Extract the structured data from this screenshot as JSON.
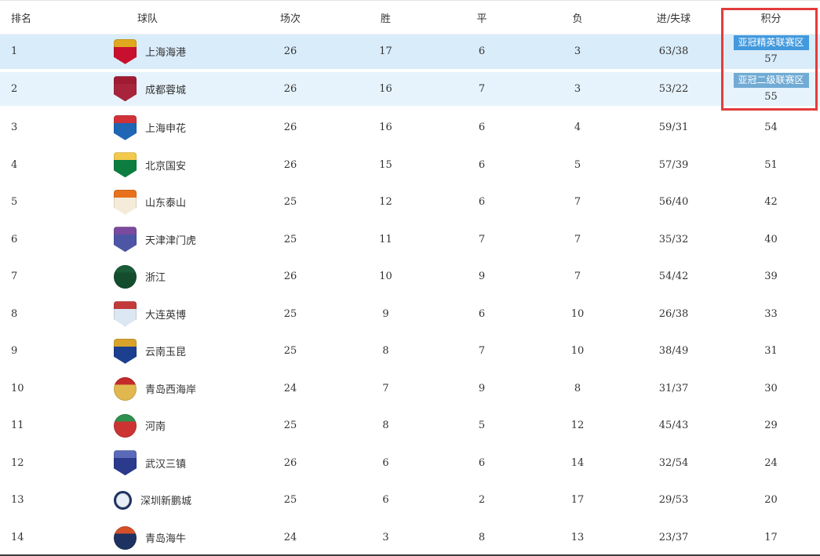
{
  "table": {
    "headers": {
      "rank": "排名",
      "team": "球队",
      "played": "场次",
      "win": "胜",
      "draw": "平",
      "loss": "负",
      "goals": "进/失球",
      "points": "积分"
    },
    "rows": [
      {
        "rank": "1",
        "team": "上海海港",
        "played": "26",
        "win": "17",
        "draw": "6",
        "loss": "3",
        "goals": "63/38",
        "points": "57",
        "badge": "亚冠精英联赛区",
        "badge_color": "#4299dd",
        "row_bg": "#d9ecf9",
        "logo": {
          "shape": "shield",
          "top": "#e0a81f",
          "bottom": "#c8102e"
        }
      },
      {
        "rank": "2",
        "team": "成都蓉城",
        "played": "26",
        "win": "16",
        "draw": "7",
        "loss": "3",
        "goals": "53/22",
        "points": "55",
        "badge": "亚冠二级联赛区",
        "badge_color": "#71abd4",
        "row_bg": "#e6f3fc",
        "logo": {
          "shape": "shield",
          "top": "#9e1b32",
          "bottom": "#a8243c"
        }
      },
      {
        "rank": "3",
        "team": "上海申花",
        "played": "26",
        "win": "16",
        "draw": "6",
        "loss": "4",
        "goals": "59/31",
        "points": "54",
        "logo": {
          "shape": "shield",
          "top": "#d13239",
          "bottom": "#1f66b5"
        }
      },
      {
        "rank": "4",
        "team": "北京国安",
        "played": "26",
        "win": "15",
        "draw": "6",
        "loss": "5",
        "goals": "57/39",
        "points": "51",
        "logo": {
          "shape": "shield",
          "top": "#f2c94c",
          "bottom": "#0c7d3e"
        }
      },
      {
        "rank": "5",
        "team": "山东泰山",
        "played": "25",
        "win": "12",
        "draw": "6",
        "loss": "7",
        "goals": "56/40",
        "points": "42",
        "logo": {
          "shape": "shield",
          "top": "#e8721c",
          "bottom": "#f4ecd8"
        }
      },
      {
        "rank": "6",
        "team": "天津津门虎",
        "played": "25",
        "win": "11",
        "draw": "7",
        "loss": "7",
        "goals": "35/32",
        "points": "40",
        "logo": {
          "shape": "shield",
          "top": "#7a4a9e",
          "bottom": "#4c56a5"
        }
      },
      {
        "rank": "7",
        "team": "浙江",
        "played": "26",
        "win": "10",
        "draw": "9",
        "loss": "7",
        "goals": "54/42",
        "points": "39",
        "logo": {
          "shape": "circle",
          "top": "#1a5c38",
          "bottom": "#144c2e"
        }
      },
      {
        "rank": "8",
        "team": "大连英博",
        "played": "25",
        "win": "9",
        "draw": "6",
        "loss": "10",
        "goals": "26/38",
        "points": "33",
        "logo": {
          "shape": "shield",
          "top": "#c23a3a",
          "bottom": "#dbe7f2"
        }
      },
      {
        "rank": "9",
        "team": "云南玉昆",
        "played": "25",
        "win": "8",
        "draw": "7",
        "loss": "10",
        "goals": "38/49",
        "points": "31",
        "logo": {
          "shape": "shield",
          "top": "#d9a32b",
          "bottom": "#1c3f8f"
        }
      },
      {
        "rank": "10",
        "team": "青岛西海岸",
        "played": "24",
        "win": "7",
        "draw": "9",
        "loss": "8",
        "goals": "31/37",
        "points": "30",
        "logo": {
          "shape": "circle",
          "top": "#c42a2a",
          "bottom": "#e0b84f"
        }
      },
      {
        "rank": "11",
        "team": "河南",
        "played": "25",
        "win": "8",
        "draw": "5",
        "loss": "12",
        "goals": "45/43",
        "points": "29",
        "logo": {
          "shape": "circle",
          "top": "#2f8f4e",
          "bottom": "#cc3333"
        }
      },
      {
        "rank": "12",
        "team": "武汉三镇",
        "played": "26",
        "win": "6",
        "draw": "6",
        "loss": "14",
        "goals": "32/54",
        "points": "24",
        "logo": {
          "shape": "shield",
          "top": "#5a6ab8",
          "bottom": "#2b3a8c"
        }
      },
      {
        "rank": "13",
        "team": "深圳新鹏城",
        "played": "25",
        "win": "6",
        "draw": "2",
        "loss": "17",
        "goals": "29/53",
        "points": "20",
        "logo": {
          "shape": "ring",
          "top": "#1d3260",
          "bottom": "#e9eff6"
        }
      },
      {
        "rank": "14",
        "team": "青岛海牛",
        "played": "24",
        "win": "3",
        "draw": "8",
        "loss": "13",
        "goals": "23/37",
        "points": "17",
        "logo": {
          "shape": "circle",
          "top": "#d4502a",
          "bottom": "#1d3260"
        }
      }
    ]
  },
  "colors": {
    "highlight_box_border": "#e23c3c",
    "row1_bg": "#d9ecf9",
    "row2_bg": "#e6f3fc",
    "badge_elite_bg": "#4299dd",
    "badge_tier2_bg": "#71abd4",
    "bottom_divider": "#3d3d3d"
  }
}
